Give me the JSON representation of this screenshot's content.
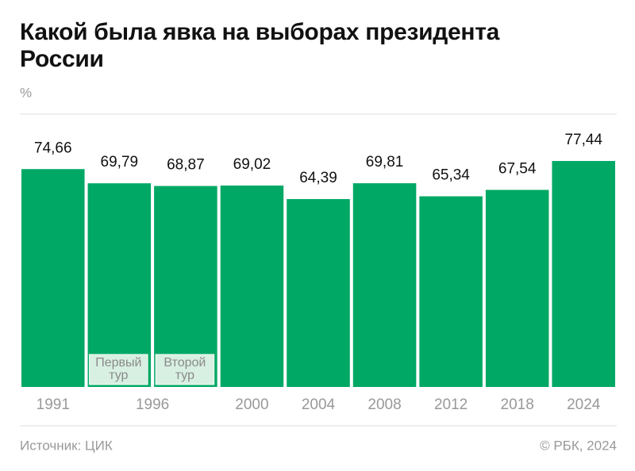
{
  "chart_data": {
    "type": "bar",
    "title": "Какой была явка на выборах президента России",
    "y_unit": "%",
    "categories": [
      "1991",
      "1996",
      null,
      "2000",
      "2004",
      "2008",
      "2012",
      "2018",
      "2024"
    ],
    "values": [
      74.66,
      69.79,
      68.87,
      69.02,
      64.39,
      69.81,
      65.34,
      67.54,
      77.44
    ],
    "value_labels": [
      "74,66",
      "69,79",
      "68,87",
      "69,02",
      "64,39",
      "69,81",
      "65,34",
      "67,54",
      "77,44"
    ],
    "bar_notes": [
      null,
      [
        "Первый",
        "тур"
      ],
      [
        "Второй",
        "тур"
      ],
      null,
      null,
      null,
      null,
      null,
      null
    ],
    "color": "#00a865",
    "ylim": [
      0,
      100
    ],
    "source": "Источник: ЦИК",
    "copyright": "© РБК, 2024"
  }
}
